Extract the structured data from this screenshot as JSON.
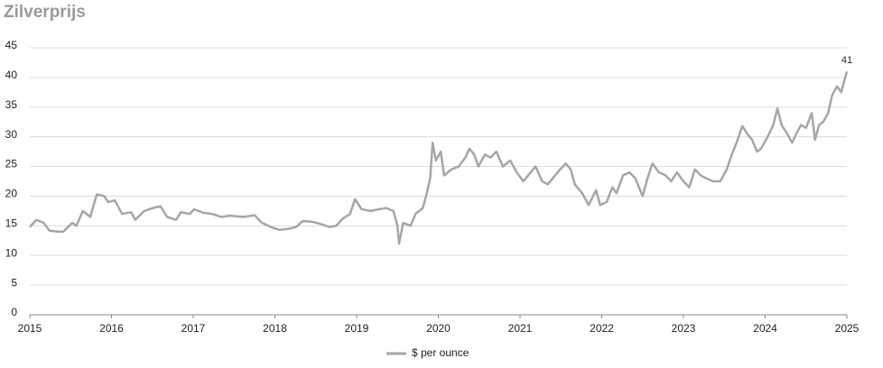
{
  "chart_data": {
    "type": "line",
    "title": "Zilverprijs",
    "x": [
      2015.0,
      2015.08,
      2015.17,
      2015.24,
      2015.35,
      2015.41,
      2015.52,
      2015.57,
      2015.65,
      2015.74,
      2015.82,
      2015.91,
      2015.96,
      2016.04,
      2016.13,
      2016.24,
      2016.29,
      2016.4,
      2016.51,
      2016.6,
      2016.68,
      2016.79,
      2016.85,
      2016.96,
      2017.01,
      2017.12,
      2017.23,
      2017.34,
      2017.45,
      2017.62,
      2017.75,
      2017.84,
      2017.95,
      2018.06,
      2018.17,
      2018.26,
      2018.34,
      2018.45,
      2018.56,
      2018.67,
      2018.75,
      2018.83,
      2018.92,
      2018.98,
      2019.06,
      2019.17,
      2019.28,
      2019.36,
      2019.45,
      2019.5,
      2019.52,
      2019.57,
      2019.66,
      2019.72,
      2019.81,
      2019.85,
      2019.9,
      2019.93,
      2019.97,
      2020.03,
      2020.07,
      2020.16,
      2020.25,
      2020.33,
      2020.38,
      2020.44,
      2020.49,
      2020.57,
      2020.64,
      2020.71,
      2020.79,
      2020.88,
      2020.96,
      2021.04,
      2021.1,
      2021.19,
      2021.27,
      2021.34,
      2021.43,
      2021.49,
      2021.56,
      2021.62,
      2021.67,
      2021.76,
      2021.84,
      2021.93,
      2021.98,
      2022.06,
      2022.13,
      2022.18,
      2022.26,
      2022.34,
      2022.41,
      2022.5,
      2022.56,
      2022.62,
      2022.7,
      2022.78,
      2022.85,
      2022.92,
      2023.0,
      2023.07,
      2023.14,
      2023.21,
      2023.28,
      2023.36,
      2023.45,
      2023.53,
      2023.59,
      2023.65,
      2023.72,
      2023.78,
      2023.84,
      2023.9,
      2023.95,
      2024.03,
      2024.1,
      2024.15,
      2024.2,
      2024.27,
      2024.33,
      2024.38,
      2024.44,
      2024.5,
      2024.57,
      2024.61,
      2024.66,
      2024.71,
      2024.77,
      2024.82,
      2024.88,
      2024.93,
      2024.97,
      2025.0
    ],
    "series": [
      {
        "name": "$ per ounce",
        "color": "#a6a6a6",
        "values": [
          14.8,
          16.0,
          15.5,
          14.2,
          14.0,
          14.0,
          15.5,
          15.0,
          17.5,
          16.5,
          20.3,
          20.0,
          19.0,
          19.3,
          17.0,
          17.3,
          16.0,
          17.5,
          18.0,
          18.3,
          16.5,
          16.0,
          17.3,
          17.0,
          17.8,
          17.2,
          17.0,
          16.5,
          16.7,
          16.5,
          16.8,
          15.5,
          14.8,
          14.3,
          14.5,
          14.8,
          15.8,
          15.7,
          15.3,
          14.8,
          15.0,
          16.2,
          17.0,
          19.5,
          17.8,
          17.5,
          17.8,
          18.0,
          17.5,
          15.0,
          12.0,
          15.5,
          15.0,
          17.0,
          18.0,
          20.0,
          23.0,
          29.0,
          26.0,
          27.5,
          23.5,
          24.5,
          25.0,
          26.5,
          28.0,
          27.0,
          25.0,
          27.0,
          26.5,
          27.5,
          25.0,
          26.0,
          24.0,
          22.5,
          23.5,
          25.0,
          22.5,
          22.0,
          23.5,
          24.5,
          25.5,
          24.5,
          22.0,
          20.5,
          18.5,
          21.0,
          18.5,
          19.0,
          21.5,
          20.5,
          23.5,
          24.0,
          23.0,
          20.0,
          23.0,
          25.5,
          24.0,
          23.5,
          22.5,
          24.0,
          22.5,
          21.5,
          24.5,
          23.5,
          23.0,
          22.5,
          22.5,
          24.5,
          27.0,
          29.0,
          31.8,
          30.5,
          29.5,
          27.5,
          28.0,
          30.0,
          32.0,
          34.8,
          32.0,
          30.5,
          29.0,
          30.5,
          32.0,
          31.5,
          34.0,
          29.5,
          32.0,
          32.5,
          34.0,
          37.0,
          38.5,
          37.5,
          39.5,
          41
        ]
      }
    ],
    "xlim": [
      2015,
      2025
    ],
    "xticks": [
      2015,
      2016,
      2017,
      2018,
      2019,
      2020,
      2021,
      2022,
      2023,
      2024,
      2025
    ],
    "ylim": [
      0,
      45
    ],
    "yticks": [
      0,
      5,
      10,
      15,
      20,
      25,
      30,
      35,
      40,
      45
    ],
    "grid": true,
    "legend": "bottom"
  }
}
